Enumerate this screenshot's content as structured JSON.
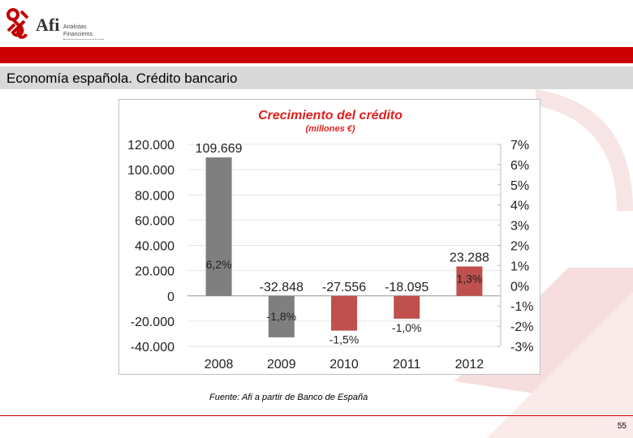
{
  "logo": {
    "brand": "Afi",
    "line1": "Analistas",
    "line2": "Financieros"
  },
  "header": {
    "title": "Economía española. Crédito bancario"
  },
  "footer": {
    "source": "Fuente: Afi a partir de Banco de España",
    "page_number": "55"
  },
  "colors": {
    "accent": "#cc0000",
    "bar_gray": "#7f7f7f",
    "bar_red": "#c0504d",
    "title_red": "#e02020"
  },
  "chart_data": {
    "type": "bar",
    "title": "Crecimiento del crédito",
    "subtitle": "(millones €)",
    "categories": [
      "2008",
      "2009",
      "2010",
      "2011",
      "2012"
    ],
    "values": [
      109669,
      -32848,
      -27556,
      -18095,
      23288
    ],
    "value_labels": [
      "109.669",
      "-32.848",
      "-27.556",
      "-18.095",
      "23.288"
    ],
    "pct_labels": [
      "6,2%",
      "-1,8%",
      "-1,5%",
      "-1,0%",
      "1,3%"
    ],
    "bar_colors": [
      "#7f7f7f",
      "#7f7f7f",
      "#c0504d",
      "#c0504d",
      "#c0504d"
    ],
    "ylim": [
      -40000,
      120000
    ],
    "y_ticks": [
      120000,
      100000,
      80000,
      60000,
      40000,
      20000,
      0,
      -20000,
      -40000
    ],
    "y_tick_labels": [
      "120.000",
      "100.000",
      "80.000",
      "60.000",
      "40.000",
      "20.000",
      "0",
      "-20.000",
      "-40.000"
    ],
    "y2_tick_labels": [
      "7%",
      "6%",
      "5%",
      "4%",
      "3%",
      "2%",
      "1%",
      "0%",
      "-1%",
      "-2%",
      "-3%"
    ],
    "y2lim": [
      -3,
      7
    ],
    "grid": true
  }
}
